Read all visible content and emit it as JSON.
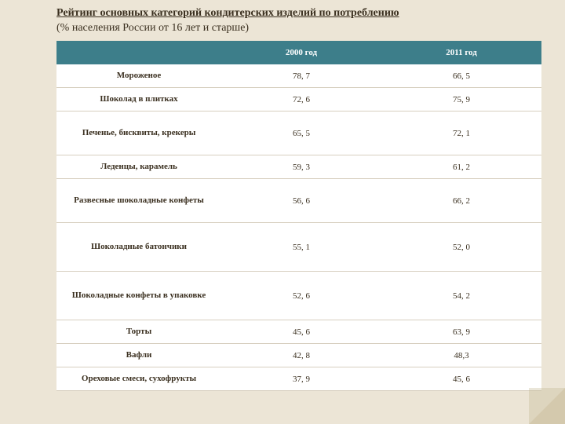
{
  "title_bold": "Рейтинг основных категорий кондитерских изделий по потреблению",
  "title_rest": "(% населения России от 16 лет и старше)",
  "columns": [
    "",
    "2000 год",
    "2011 год"
  ],
  "rows": [
    {
      "h": "h1",
      "cells": [
        "Мороженое",
        "78, 7",
        "66, 5"
      ]
    },
    {
      "h": "h1",
      "cells": [
        "Шоколад в плитках",
        "72, 6",
        "75, 9"
      ]
    },
    {
      "h": "h2",
      "cells": [
        "Печенье, бисквиты, крекеры",
        "65, 5",
        "72, 1"
      ]
    },
    {
      "h": "h1",
      "cells": [
        "Леденцы, карамель",
        "59, 3",
        "61, 2"
      ]
    },
    {
      "h": "h2",
      "cells": [
        "Развесные шоколадные конфеты",
        "56, 6",
        "66, 2"
      ]
    },
    {
      "h": "h3",
      "cells": [
        "Шоколадные батончики",
        "55, 1",
        "52, 0"
      ]
    },
    {
      "h": "h3",
      "cells": [
        "Шоколадные конфеты в упаковке",
        "52, 6",
        "54, 2"
      ]
    },
    {
      "h": "h1",
      "cells": [
        "Торты",
        "45, 6",
        "63, 9"
      ]
    },
    {
      "h": "h1",
      "cells": [
        "Вафли",
        "42, 8",
        "48,3"
      ]
    },
    {
      "h": "h1",
      "cells": [
        "Ореховые смеси, сухофрукты",
        "37, 9",
        "45, 6"
      ]
    }
  ]
}
